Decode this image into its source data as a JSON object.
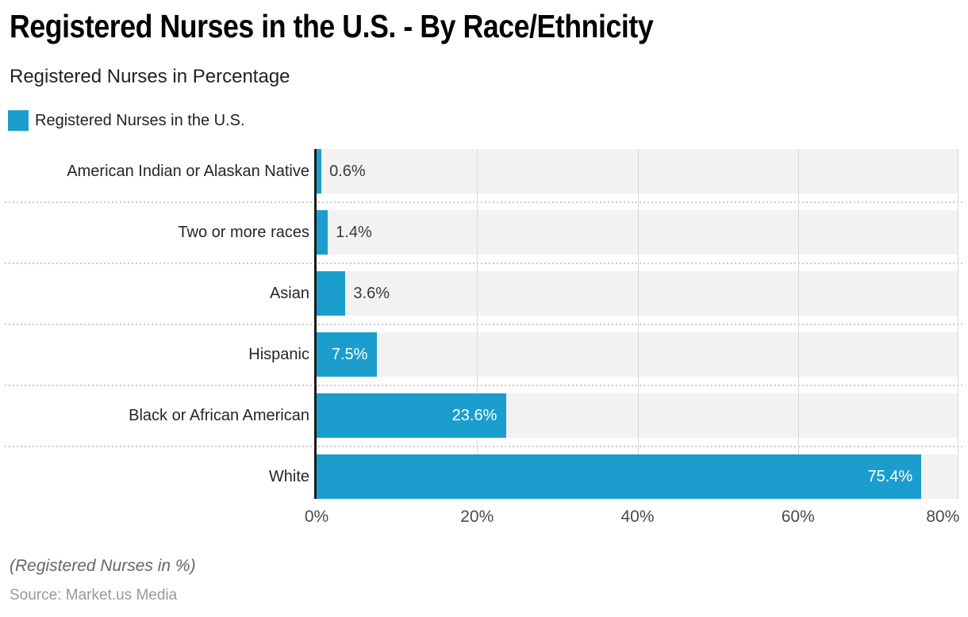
{
  "title": "Registered Nurses in the U.S. - By Race/Ethnicity",
  "subtitle": "Registered Nurses in Percentage",
  "legend": {
    "label": "Registered Nurses in the U.S."
  },
  "chart_data": {
    "type": "bar",
    "orientation": "horizontal",
    "title": "Registered Nurses in the U.S. - By Race/Ethnicity",
    "subtitle": "Registered Nurses in Percentage",
    "categories": [
      "American Indian or Alaskan Native",
      "Two or more races",
      "Asian",
      "Hispanic",
      "Black or African American",
      "White"
    ],
    "series": [
      {
        "name": "Registered Nurses in the U.S.",
        "values": [
          0.6,
          1.4,
          3.6,
          7.5,
          23.6,
          75.4
        ]
      }
    ],
    "value_labels": [
      "0.6%",
      "1.4%",
      "3.6%",
      "7.5%",
      "23.6%",
      "75.4%"
    ],
    "xlabel": "",
    "ylabel": "",
    "xlim": [
      0,
      80
    ],
    "x_ticks": [
      {
        "value": 0,
        "label": "0%"
      },
      {
        "value": 20,
        "label": "20%"
      },
      {
        "value": 40,
        "label": "40%"
      },
      {
        "value": 60,
        "label": "60%"
      },
      {
        "value": 80,
        "label": "80%"
      }
    ],
    "grid": true,
    "legend_position": "top-left",
    "colors": {
      "bar": "#1B9ECE",
      "track": "#F2F2F2",
      "gridline": "#D9D9D9",
      "separator": "#CBCBCB",
      "axis": "#1A1A1A",
      "value_label_inside": "#FFFFFF",
      "value_label_outside": "#3A3A3A"
    }
  },
  "footer": {
    "note": "(Registered Nurses in %)",
    "source": "Source: Market.us Media"
  }
}
